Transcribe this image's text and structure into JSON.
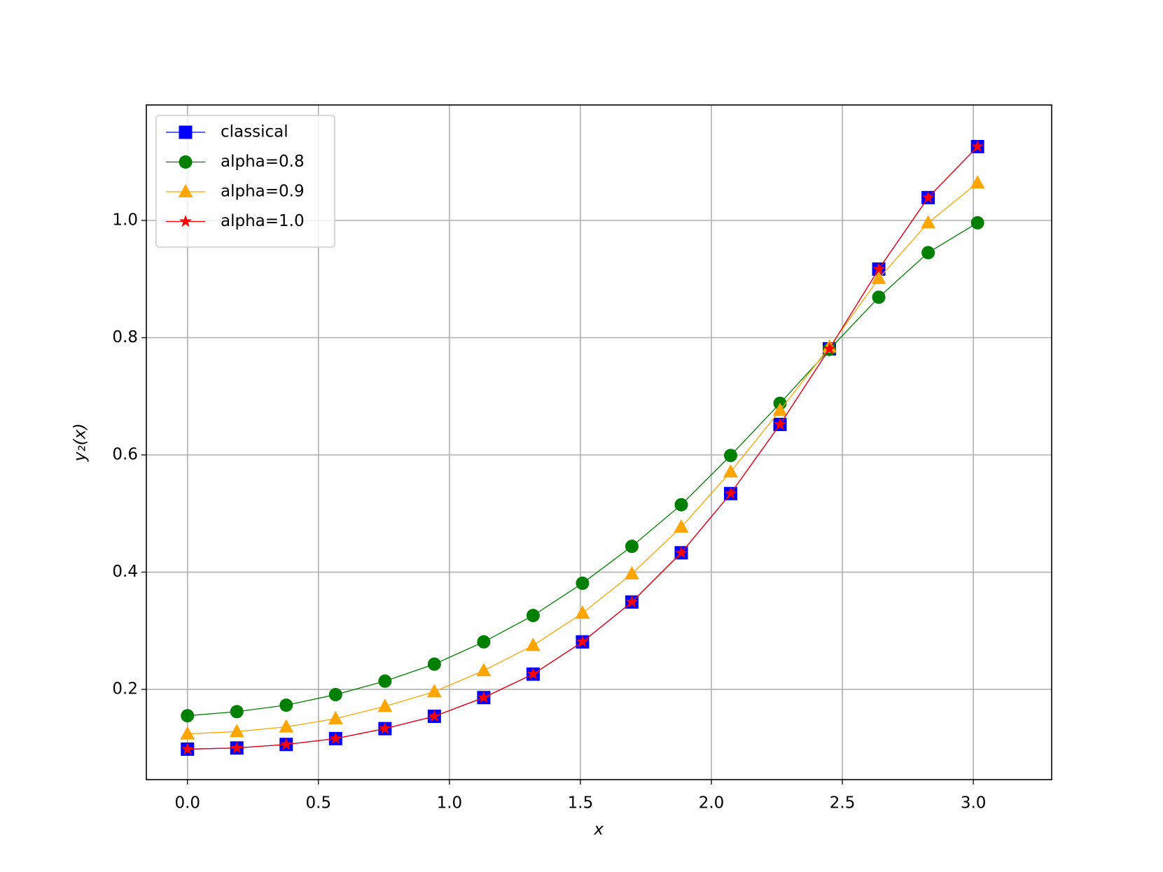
{
  "chart_data": {
    "type": "line",
    "x": [
      0,
      0.1885,
      0.377,
      0.5655,
      0.754,
      0.9425,
      1.131,
      1.3195,
      1.508,
      1.6965,
      1.885,
      2.0735,
      2.262,
      2.4505,
      2.639,
      2.8275,
      3.016
    ],
    "series": [
      {
        "name": "classical",
        "color": "#0000ff",
        "marker": "square",
        "values": [
          0.098,
          0.1,
          0.106,
          0.116,
          0.133,
          0.154,
          0.186,
          0.226,
          0.281,
          0.349,
          0.433,
          0.534,
          0.652,
          0.781,
          0.917,
          1.039,
          1.126
        ]
      },
      {
        "name": "alpha=0.8",
        "color": "#008000",
        "marker": "circle",
        "values": [
          0.155,
          0.162,
          0.173,
          0.191,
          0.214,
          0.243,
          0.281,
          0.326,
          0.381,
          0.444,
          0.515,
          0.599,
          0.688,
          0.78,
          0.869,
          0.945,
          0.996
        ]
      },
      {
        "name": "alpha=0.9",
        "color": "#ffa500",
        "marker": "triangle",
        "values": [
          0.124,
          0.128,
          0.136,
          0.15,
          0.171,
          0.196,
          0.232,
          0.275,
          0.33,
          0.397,
          0.477,
          0.571,
          0.676,
          0.784,
          0.901,
          0.996,
          1.064
        ]
      },
      {
        "name": "alpha=1.0",
        "color": "#ff0000",
        "marker": "star",
        "values": [
          0.098,
          0.1,
          0.106,
          0.116,
          0.133,
          0.154,
          0.186,
          0.226,
          0.281,
          0.349,
          0.433,
          0.534,
          0.652,
          0.781,
          0.917,
          1.039,
          1.126
        ]
      }
    ],
    "x_label": "x",
    "y_label": "y₂(x)",
    "xlim": [
      -0.157,
      3.299
    ],
    "ylim": [
      0.046,
      1.197
    ],
    "xticks": [
      {
        "value": 0,
        "label": "0.0"
      },
      0.5,
      {
        "value": 1,
        "label": "1.0"
      },
      1.5,
      {
        "value": 2,
        "label": "2.0"
      },
      2.5,
      {
        "value": 3,
        "label": "3.0"
      }
    ],
    "yticks": [
      0.2,
      0.4,
      0.6,
      0.8,
      {
        "value": 1,
        "label": "1.0"
      }
    ],
    "grid": true,
    "legend": "upper-left"
  }
}
